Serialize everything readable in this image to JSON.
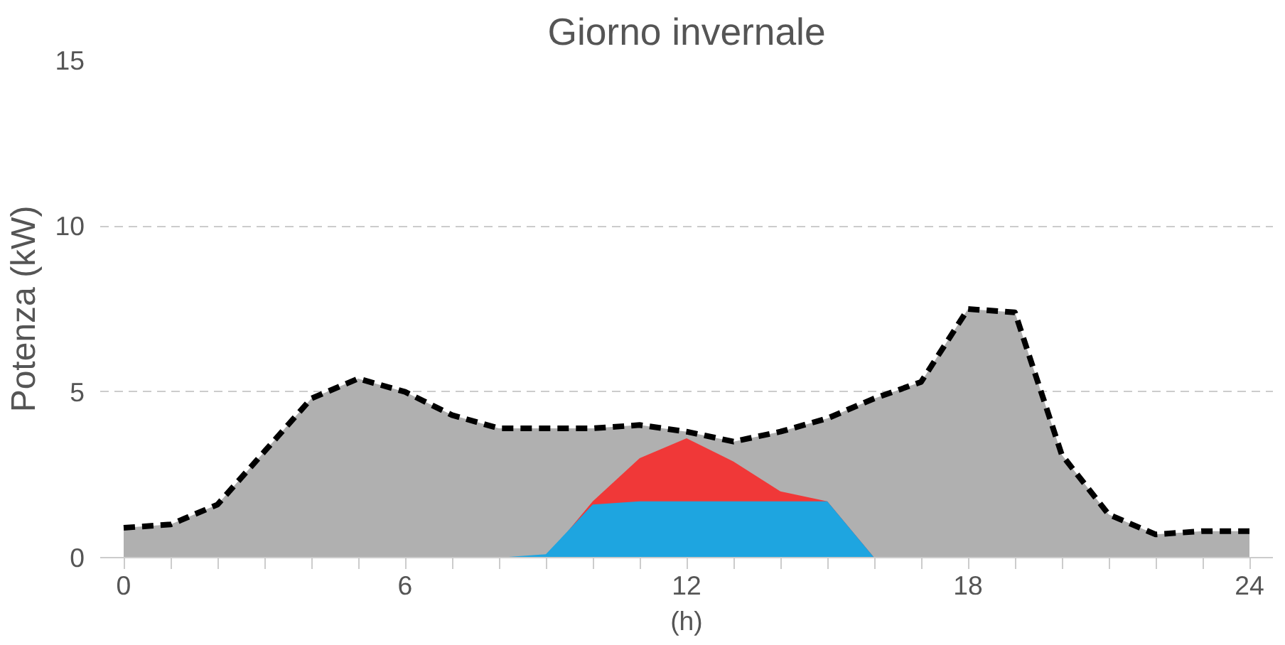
{
  "chart_data": {
    "type": "area",
    "title": "Giorno invernale",
    "xlabel": "(h)",
    "ylabel": "Potenza (kW)",
    "x": [
      0,
      1,
      2,
      3,
      4,
      5,
      6,
      7,
      8,
      9,
      10,
      11,
      12,
      13,
      14,
      15,
      16,
      17,
      18,
      19,
      20,
      21,
      22,
      23,
      24
    ],
    "series": [
      {
        "color": "#b0b0b0",
        "line_style": "dashed",
        "values": [
          0.9,
          1.0,
          1.6,
          3.2,
          4.8,
          5.4,
          5.0,
          4.3,
          3.9,
          3.9,
          3.9,
          4.0,
          3.8,
          3.5,
          3.8,
          4.2,
          4.8,
          5.3,
          7.5,
          7.4,
          3.1,
          1.3,
          0.7,
          0.8,
          0.8
        ]
      },
      {
        "color": "#f03838",
        "values": [
          0,
          0,
          0,
          0,
          0,
          0,
          0,
          0,
          0,
          0,
          1.7,
          3.0,
          3.6,
          2.9,
          2.0,
          1.7,
          0,
          0,
          0,
          0,
          0,
          0,
          0,
          0,
          0
        ]
      },
      {
        "color": "#1ea5e0",
        "values": [
          0,
          0,
          0,
          0,
          0,
          0,
          0,
          0,
          0,
          0.1,
          1.6,
          1.7,
          1.7,
          1.7,
          1.7,
          1.7,
          0,
          0,
          0,
          0,
          0,
          0,
          0,
          0,
          0
        ]
      }
    ],
    "xlim": [
      -0.5,
      24.5
    ],
    "ylim": [
      0,
      15
    ],
    "xticks": [
      0,
      6,
      12,
      18,
      24
    ],
    "yticks": [
      0,
      5,
      10,
      15
    ],
    "grid": "y"
  }
}
